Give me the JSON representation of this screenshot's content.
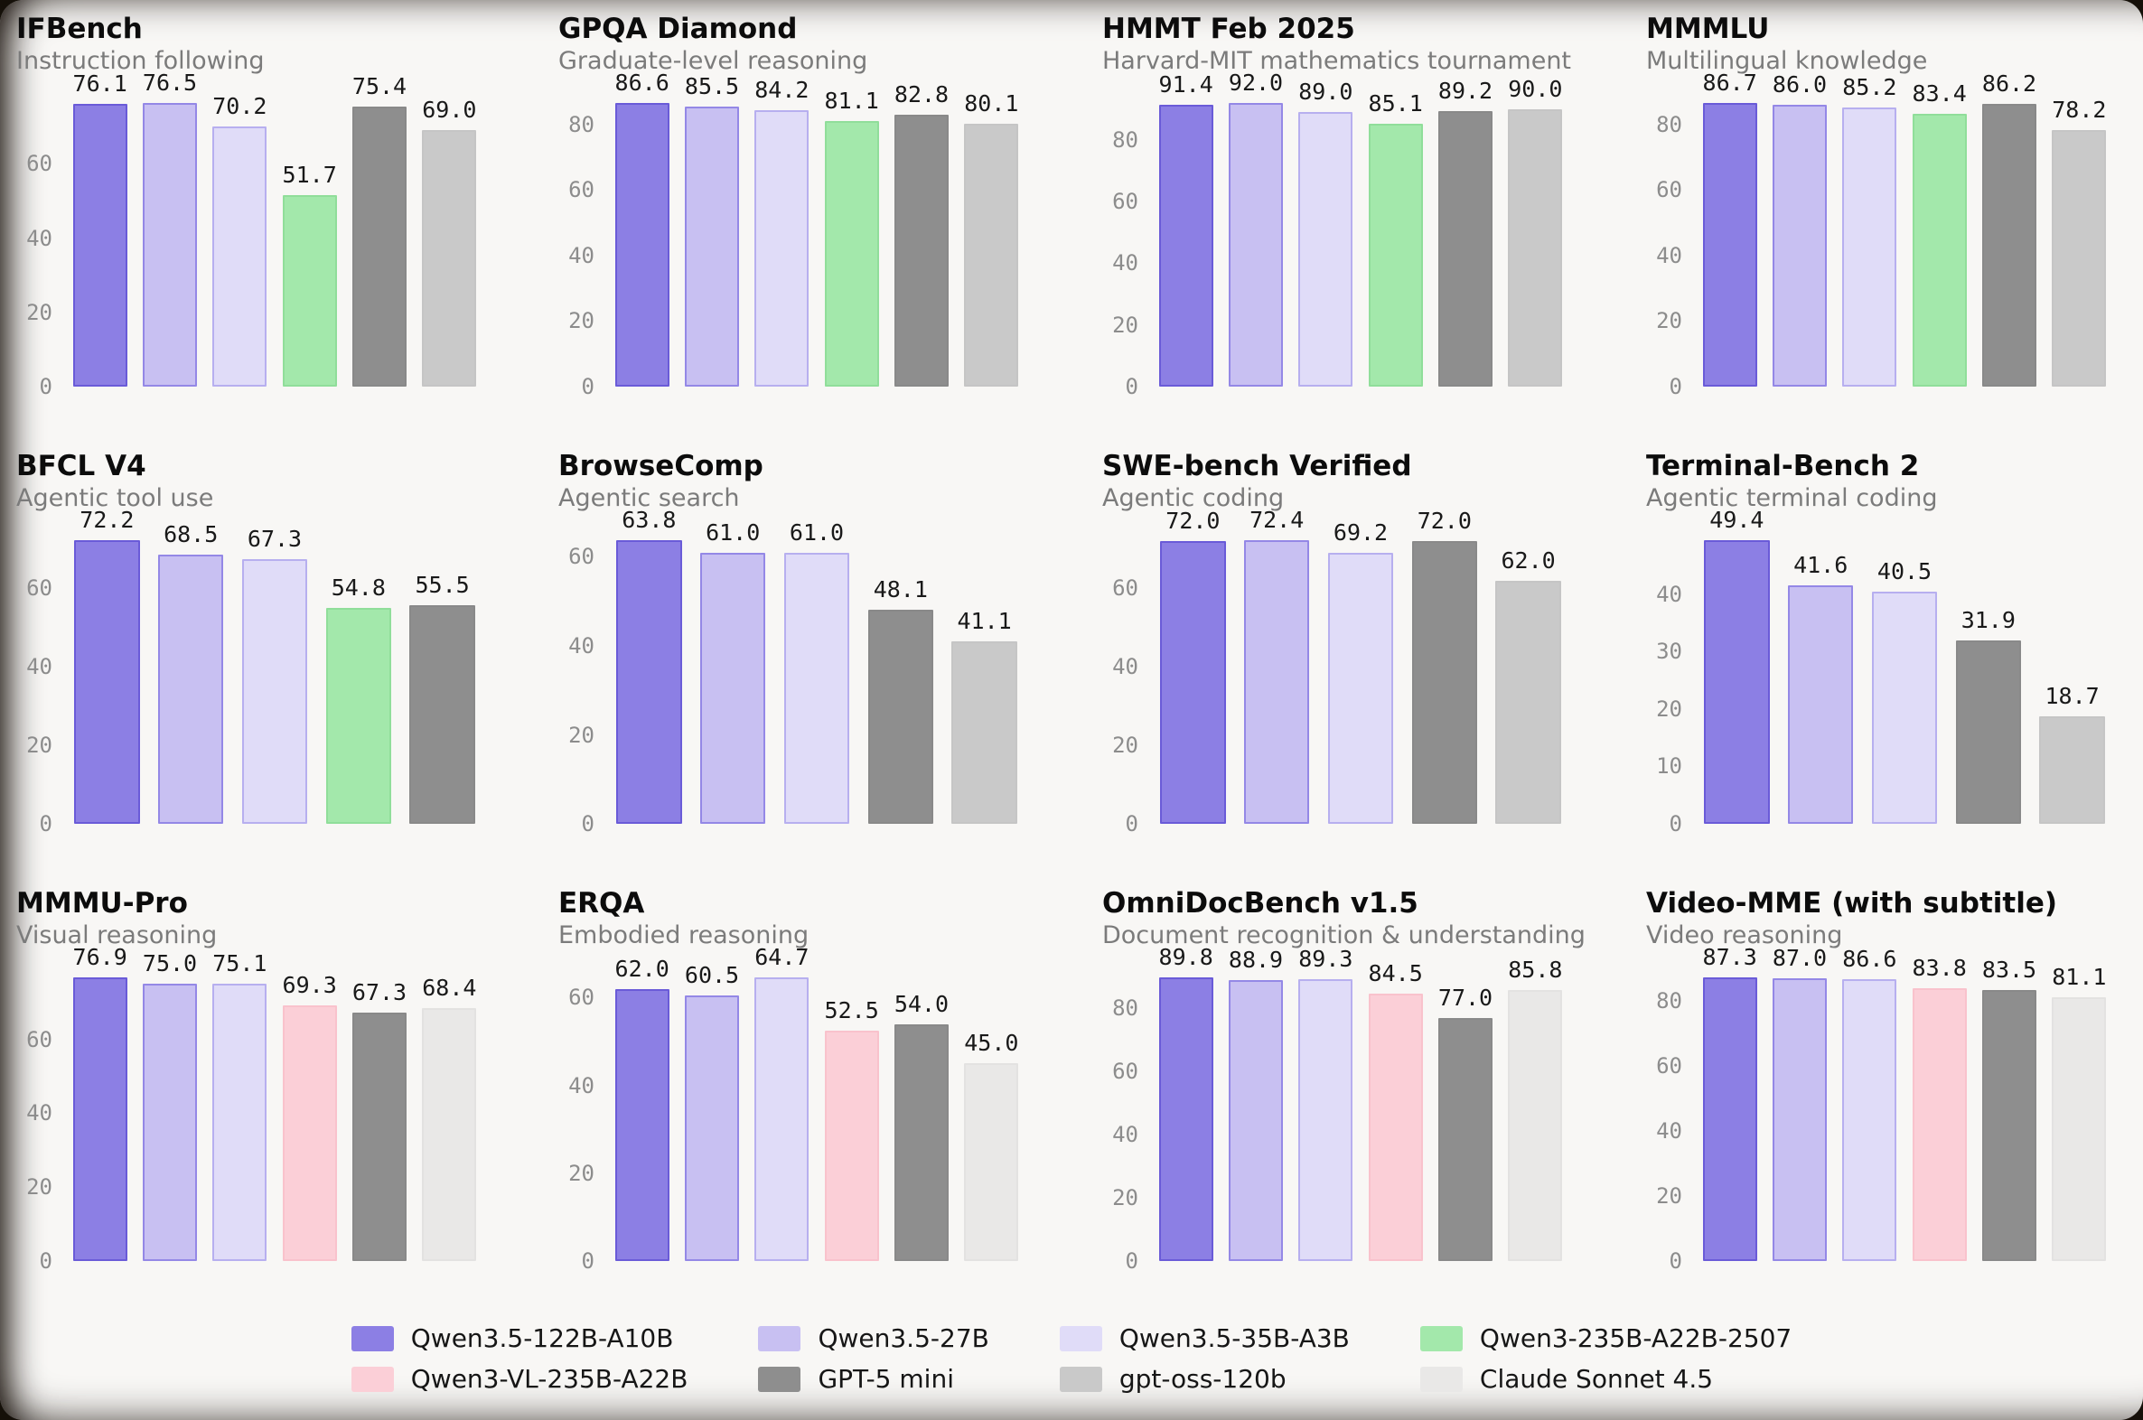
{
  "series": {
    "q122": {
      "label": "Qwen3.5-122B-A10B",
      "fill": "#8C7FE4",
      "edge": "#6A5BD8"
    },
    "q27": {
      "label": "Qwen3.5-27B",
      "fill": "#C8C0F2",
      "edge": "#9488E6"
    },
    "q35a3": {
      "label": "Qwen3.5-35B-A3B",
      "fill": "#E0DCF8",
      "edge": "#B7AFEF"
    },
    "q235": {
      "label": "Qwen3-235B-A22B-2507",
      "fill": "#A3E8AB",
      "edge": "#90DE9A"
    },
    "qvl": {
      "label": "Qwen3-VL-235B-A22B",
      "fill": "#FBCFD7",
      "edge": "#F9C2CC"
    },
    "gpt5": {
      "label": "GPT-5 mini",
      "fill": "#8E8E8E",
      "edge": "#898989"
    },
    "oss": {
      "label": "gpt-oss-120b",
      "fill": "#C9C9C9",
      "edge": "#C5C5C5"
    },
    "claude": {
      "label": "Claude Sonnet 4.5",
      "fill": "#E9E8E7",
      "edge": "#E3E2E1"
    }
  },
  "chart_data": [
    {
      "type": "bar",
      "title": "IFBench",
      "subtitle": "Instruction following",
      "ylim": [
        0,
        80.3
      ],
      "yticks": [
        0,
        20,
        40,
        60
      ],
      "bars": [
        {
          "series": "q122",
          "value": 76.1,
          "label": "76.1"
        },
        {
          "series": "q27",
          "value": 76.5,
          "label": "76.5"
        },
        {
          "series": "q35a3",
          "value": 70.2,
          "label": "70.2"
        },
        {
          "series": "q235",
          "value": 51.7,
          "label": "51.7"
        },
        {
          "series": "gpt5",
          "value": 75.4,
          "label": "75.4"
        },
        {
          "series": "oss",
          "value": 69.0,
          "label": "69.0"
        }
      ]
    },
    {
      "type": "bar",
      "title": "GPQA Diamond",
      "subtitle": "Graduate-level reasoning",
      "ylim": [
        0,
        90.9
      ],
      "yticks": [
        0,
        20,
        40,
        60,
        80
      ],
      "bars": [
        {
          "series": "q122",
          "value": 86.6,
          "label": "86.6"
        },
        {
          "series": "q27",
          "value": 85.5,
          "label": "85.5"
        },
        {
          "series": "q35a3",
          "value": 84.2,
          "label": "84.2"
        },
        {
          "series": "q235",
          "value": 81.1,
          "label": "81.1"
        },
        {
          "series": "gpt5",
          "value": 82.8,
          "label": "82.8"
        },
        {
          "series": "oss",
          "value": 80.1,
          "label": "80.1"
        }
      ]
    },
    {
      "type": "bar",
      "title": "HMMT Feb 2025",
      "subtitle": "Harvard-MIT mathematics tournament",
      "ylim": [
        0,
        96.6
      ],
      "yticks": [
        0,
        20,
        40,
        60,
        80
      ],
      "bars": [
        {
          "series": "q122",
          "value": 91.4,
          "label": "91.4"
        },
        {
          "series": "q27",
          "value": 92.0,
          "label": "92.0"
        },
        {
          "series": "q35a3",
          "value": 89.0,
          "label": "89.0"
        },
        {
          "series": "q235",
          "value": 85.1,
          "label": "85.1"
        },
        {
          "series": "gpt5",
          "value": 89.2,
          "label": "89.2"
        },
        {
          "series": "oss",
          "value": 90.0,
          "label": "90.0"
        }
      ]
    },
    {
      "type": "bar",
      "title": "MMMLU",
      "subtitle": "Multilingual knowledge",
      "ylim": [
        0,
        91.0
      ],
      "yticks": [
        0,
        20,
        40,
        60,
        80
      ],
      "bars": [
        {
          "series": "q122",
          "value": 86.7,
          "label": "86.7"
        },
        {
          "series": "q27",
          "value": 86.0,
          "label": "86.0"
        },
        {
          "series": "q35a3",
          "value": 85.2,
          "label": "85.2"
        },
        {
          "series": "q235",
          "value": 83.4,
          "label": "83.4"
        },
        {
          "series": "gpt5",
          "value": 86.2,
          "label": "86.2"
        },
        {
          "series": "oss",
          "value": 78.2,
          "label": "78.2"
        }
      ]
    },
    {
      "type": "bar",
      "title": "BFCL V4",
      "subtitle": "Agentic tool use",
      "ylim": [
        0,
        75.8
      ],
      "yticks": [
        0,
        20,
        40,
        60
      ],
      "bars": [
        {
          "series": "q122",
          "value": 72.2,
          "label": "72.2"
        },
        {
          "series": "q27",
          "value": 68.5,
          "label": "68.5"
        },
        {
          "series": "q35a3",
          "value": 67.3,
          "label": "67.3"
        },
        {
          "series": "q235",
          "value": 54.8,
          "label": "54.8"
        },
        {
          "series": "gpt5",
          "value": 55.5,
          "label": "55.5"
        }
      ]
    },
    {
      "type": "bar",
      "title": "BrowseComp",
      "subtitle": "Agentic search",
      "ylim": [
        0,
        67.0
      ],
      "yticks": [
        0,
        20,
        40,
        60
      ],
      "bars": [
        {
          "series": "q122",
          "value": 63.8,
          "label": "63.8"
        },
        {
          "series": "q27",
          "value": 61.0,
          "label": "61.0"
        },
        {
          "series": "q35a3",
          "value": 61.0,
          "label": "61.0"
        },
        {
          "series": "gpt5",
          "value": 48.1,
          "label": "48.1"
        },
        {
          "series": "oss",
          "value": 41.1,
          "label": "41.1"
        }
      ]
    },
    {
      "type": "bar",
      "title": "SWE-bench Verified",
      "subtitle": "Agentic coding",
      "ylim": [
        0,
        76.0
      ],
      "yticks": [
        0,
        20,
        40,
        60
      ],
      "bars": [
        {
          "series": "q122",
          "value": 72.0,
          "label": "72.0"
        },
        {
          "series": "q27",
          "value": 72.4,
          "label": "72.4"
        },
        {
          "series": "q35a3",
          "value": 69.2,
          "label": "69.2"
        },
        {
          "series": "gpt5",
          "value": 72.0,
          "label": "72.0"
        },
        {
          "series": "oss",
          "value": 62.0,
          "label": "62.0"
        }
      ]
    },
    {
      "type": "bar",
      "title": "Terminal-Bench 2",
      "subtitle": "Agentic terminal coding",
      "ylim": [
        0,
        51.9
      ],
      "yticks": [
        0,
        10,
        20,
        30,
        40
      ],
      "bars": [
        {
          "series": "q122",
          "value": 49.4,
          "label": "49.4"
        },
        {
          "series": "q27",
          "value": 41.6,
          "label": "41.6"
        },
        {
          "series": "q35a3",
          "value": 40.5,
          "label": "40.5"
        },
        {
          "series": "gpt5",
          "value": 31.9,
          "label": "31.9"
        },
        {
          "series": "oss",
          "value": 18.7,
          "label": "18.7"
        }
      ]
    },
    {
      "type": "bar",
      "title": "MMMU-Pro",
      "subtitle": "Visual reasoning",
      "ylim": [
        0,
        80.7
      ],
      "yticks": [
        0,
        20,
        40,
        60
      ],
      "bars": [
        {
          "series": "q122",
          "value": 76.9,
          "label": "76.9"
        },
        {
          "series": "q27",
          "value": 75.0,
          "label": "75.0"
        },
        {
          "series": "q35a3",
          "value": 75.1,
          "label": "75.1"
        },
        {
          "series": "qvl",
          "value": 69.3,
          "label": "69.3"
        },
        {
          "series": "gpt5",
          "value": 67.3,
          "label": "67.3"
        },
        {
          "series": "claude",
          "value": 68.4,
          "label": "68.4"
        }
      ]
    },
    {
      "type": "bar",
      "title": "ERQA",
      "subtitle": "Embodied reasoning",
      "ylim": [
        0,
        67.9
      ],
      "yticks": [
        0,
        20,
        40,
        60
      ],
      "bars": [
        {
          "series": "q122",
          "value": 62.0,
          "label": "62.0"
        },
        {
          "series": "q27",
          "value": 60.5,
          "label": "60.5"
        },
        {
          "series": "q35a3",
          "value": 64.7,
          "label": "64.7"
        },
        {
          "series": "qvl",
          "value": 52.5,
          "label": "52.5"
        },
        {
          "series": "gpt5",
          "value": 54.0,
          "label": "54.0"
        },
        {
          "series": "claude",
          "value": 45.0,
          "label": "45.0"
        }
      ]
    },
    {
      "type": "bar",
      "title": "OmniDocBench v1.5",
      "subtitle": "Document recognition & understanding",
      "ylim": [
        0,
        94.3
      ],
      "yticks": [
        0,
        20,
        40,
        60,
        80
      ],
      "bars": [
        {
          "series": "q122",
          "value": 89.8,
          "label": "89.8"
        },
        {
          "series": "q27",
          "value": 88.9,
          "label": "88.9"
        },
        {
          "series": "q35a3",
          "value": 89.3,
          "label": "89.3"
        },
        {
          "series": "qvl",
          "value": 84.5,
          "label": "84.5"
        },
        {
          "series": "gpt5",
          "value": 77.0,
          "label": "77.0"
        },
        {
          "series": "claude",
          "value": 85.8,
          "label": "85.8"
        }
      ]
    },
    {
      "type": "bar",
      "title": "Video-MME (with subtitle)",
      "subtitle": "Video reasoning",
      "ylim": [
        0,
        91.7
      ],
      "yticks": [
        0,
        20,
        40,
        60,
        80
      ],
      "bars": [
        {
          "series": "q122",
          "value": 87.3,
          "label": "87.3"
        },
        {
          "series": "q27",
          "value": 87.0,
          "label": "87.0"
        },
        {
          "series": "q35a3",
          "value": 86.6,
          "label": "86.6"
        },
        {
          "series": "qvl",
          "value": 83.8,
          "label": "83.8"
        },
        {
          "series": "gpt5",
          "value": 83.5,
          "label": "83.5"
        },
        {
          "series": "claude",
          "value": 81.1,
          "label": "81.1"
        }
      ]
    }
  ],
  "legend": {
    "columns": [
      [
        "q122",
        "qvl"
      ],
      [
        "q27",
        "gpt5"
      ],
      [
        "q35a3",
        "oss"
      ],
      [
        "q235",
        "claude"
      ]
    ]
  }
}
